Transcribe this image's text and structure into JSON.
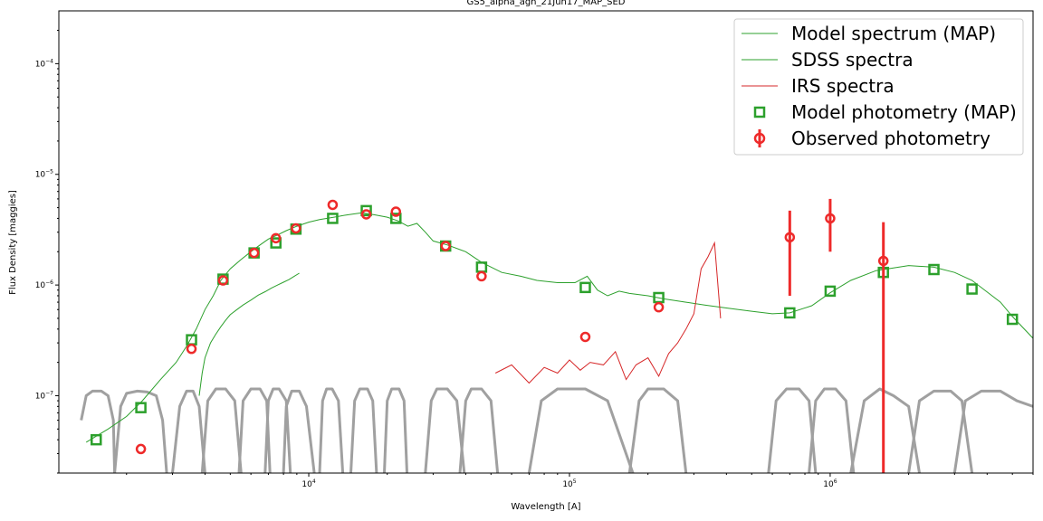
{
  "chart_data": {
    "type": "scatter",
    "title": "GS5_alpha_agn_21Jun17_MAP_SED",
    "xlabel": "Wavelength [A]",
    "ylabel": "Flux Density [maggies]",
    "xscale": "log",
    "yscale": "log",
    "xlim": [
      1100,
      6000000
    ],
    "ylim": [
      2e-08,
      0.0003
    ],
    "grid": false,
    "legend_placement": "top-right",
    "x_ticks": [
      {
        "base": "10",
        "exp": "4",
        "value": 10000
      },
      {
        "base": "10",
        "exp": "5",
        "value": 100000
      },
      {
        "base": "10",
        "exp": "6",
        "value": 1000000
      }
    ],
    "y_ticks": [
      {
        "base": "10",
        "exp": "−7",
        "value": 1e-07
      },
      {
        "base": "10",
        "exp": "−6",
        "value": 1e-06
      },
      {
        "base": "10",
        "exp": "−5",
        "value": 1e-05
      },
      {
        "base": "10",
        "exp": "−4",
        "value": 0.0001
      }
    ],
    "colors": {
      "model": "#2ca02c",
      "sdss": "#2ca02c",
      "irs": "#d62728",
      "model_phot": "#2ca02c",
      "obs_phot": "#ee2a2a",
      "filters": "#a0a0a0"
    },
    "series": [
      {
        "name": "Model spectrum (MAP)",
        "kind": "line",
        "x": [
          1400,
          1700,
          2000,
          2300,
          2700,
          3100,
          3400,
          3700,
          4000,
          4300,
          4600,
          5000,
          5500,
          6000,
          6500,
          7000,
          7500,
          8200,
          9000,
          10000,
          11000,
          12500,
          14000,
          16000,
          18000,
          20000,
          22000,
          24000,
          26000,
          28000,
          30000,
          34000,
          40000,
          46000,
          55000,
          65000,
          75000,
          90000,
          105000,
          117000,
          128000,
          140000,
          155000,
          170000,
          200000,
          230000,
          280000,
          330000,
          400000,
          500000,
          600000,
          700000,
          850000,
          1000000,
          1200000,
          1500000,
          2000000,
          2500000,
          3000000,
          3500000,
          4500000,
          5000000,
          6000000
        ],
        "y": [
          3.8e-08,
          5e-08,
          6.5e-08,
          9e-08,
          1.4e-07,
          2e-07,
          2.8e-07,
          4e-07,
          6e-07,
          8e-07,
          1.1e-06,
          1.4e-06,
          1.7e-06,
          2e-06,
          2.3e-06,
          2.6e-06,
          2.8e-06,
          3.1e-06,
          3.4e-06,
          3.7e-06,
          3.9e-06,
          4.1e-06,
          4.3e-06,
          4.5e-06,
          4.3e-06,
          4.1e-06,
          3.8e-06,
          3.4e-06,
          3.6e-06,
          3e-06,
          2.5e-06,
          2.3e-06,
          2e-06,
          1.6e-06,
          1.3e-06,
          1.2e-06,
          1.1e-06,
          1.05e-06,
          1.05e-06,
          1.2e-06,
          9e-07,
          8e-07,
          8.8e-07,
          8.4e-07,
          8e-07,
          7.5e-07,
          7e-07,
          6.6e-07,
          6.2e-07,
          5.8e-07,
          5.5e-07,
          5.6e-07,
          6.5e-07,
          8.5e-07,
          1.1e-06,
          1.35e-06,
          1.5e-06,
          1.45e-06,
          1.3e-06,
          1.1e-06,
          7e-07,
          5.2e-07,
          3.3e-07
        ]
      },
      {
        "name": "SDSS spectra",
        "kind": "line",
        "x": [
          3800,
          3900,
          4000,
          4200,
          4400,
          4600,
          4800,
          5000,
          5300,
          5600,
          6000,
          6400,
          6800,
          7200,
          7600,
          8000,
          8400,
          8800,
          9200
        ],
        "y": [
          1e-07,
          1.6e-07,
          2.2e-07,
          3e-07,
          3.6e-07,
          4.2e-07,
          4.8e-07,
          5.4e-07,
          6e-07,
          6.6e-07,
          7.3e-07,
          8.1e-07,
          8.7e-07,
          9.4e-07,
          1e-06,
          1.06e-06,
          1.12e-06,
          1.2e-06,
          1.28e-06
        ]
      },
      {
        "name": "IRS spectra",
        "kind": "line",
        "x": [
          52000,
          60000,
          70000,
          80000,
          90000,
          100000,
          110000,
          120000,
          135000,
          150000,
          165000,
          180000,
          200000,
          220000,
          240000,
          260000,
          280000,
          300000,
          320000,
          340000,
          360000,
          380000
        ],
        "y": [
          1.6e-07,
          1.9e-07,
          1.3e-07,
          1.8e-07,
          1.6e-07,
          2.1e-07,
          1.7e-07,
          2e-07,
          1.9e-07,
          2.5e-07,
          1.4e-07,
          1.9e-07,
          2.2e-07,
          1.5e-07,
          2.4e-07,
          3e-07,
          4e-07,
          5.5e-07,
          1.4e-06,
          1.8e-06,
          2.4e-06,
          5e-07
        ]
      },
      {
        "name": "Model photometry (MAP)",
        "kind": "square",
        "x": [
          1530,
          2270,
          3550,
          4690,
          6170,
          7480,
          8930,
          12350,
          16620,
          21590,
          33500,
          46000,
          115000,
          220000,
          700000,
          1000000,
          1600000,
          2500000,
          3500000,
          5000000
        ],
        "y": [
          4e-08,
          7.8e-08,
          3.2e-07,
          1.13e-06,
          1.95e-06,
          2.4e-06,
          3.2e-06,
          4e-06,
          4.7e-06,
          4e-06,
          2.25e-06,
          1.45e-06,
          9.5e-07,
          7.7e-07,
          5.6e-07,
          8.8e-07,
          1.3e-06,
          1.38e-06,
          9.2e-07,
          4.9e-07
        ]
      },
      {
        "name": "Observed photometry",
        "kind": "circle",
        "x": [
          2270,
          3550,
          4690,
          6170,
          7480,
          8930,
          12350,
          16620,
          21590,
          33500,
          46000,
          115000,
          220000,
          700000,
          1000000,
          1600000
        ],
        "y": [
          3.3e-08,
          2.65e-07,
          1.1e-06,
          1.95e-06,
          2.65e-06,
          3.25e-06,
          5.3e-06,
          4.35e-06,
          4.6e-06,
          2.25e-06,
          1.2e-06,
          3.4e-07,
          6.3e-07,
          2.7e-06,
          4e-06,
          1.65e-06
        ],
        "yerr_low": [
          0,
          0,
          0,
          0,
          0,
          0,
          0,
          0,
          0,
          0,
          0,
          0,
          0,
          8e-07,
          2e-06,
          2e-08
        ],
        "yerr_high": [
          0,
          0,
          0,
          0,
          0,
          0,
          0,
          0,
          0,
          0,
          0,
          0,
          0,
          4.7e-06,
          6e-06,
          3.7e-06
        ]
      }
    ],
    "filter_curves": [
      {
        "x": [
          1340,
          1400,
          1480,
          1600,
          1700,
          1780,
          1800
        ],
        "y": [
          6e-08,
          1e-07,
          1.1e-07,
          1.1e-07,
          1e-07,
          6e-08,
          2e-08
        ]
      },
      {
        "x": [
          1800,
          1900,
          2000,
          2200,
          2400,
          2600,
          2750,
          2850
        ],
        "y": [
          2e-08,
          8e-08,
          1.05e-07,
          1.1e-07,
          1.08e-07,
          1e-07,
          6e-08,
          2e-08
        ]
      },
      {
        "x": [
          3000,
          3200,
          3400,
          3600,
          3800,
          4000
        ],
        "y": [
          2e-08,
          8e-08,
          1.1e-07,
          1.1e-07,
          8e-08,
          2e-08
        ]
      },
      {
        "x": [
          3900,
          4100,
          4400,
          4800,
          5200,
          5500
        ],
        "y": [
          2e-08,
          9e-08,
          1.15e-07,
          1.15e-07,
          9e-08,
          2e-08
        ]
      },
      {
        "x": [
          5400,
          5600,
          6000,
          6500,
          6900,
          7100
        ],
        "y": [
          2e-08,
          9e-08,
          1.15e-07,
          1.15e-07,
          9e-08,
          2e-08
        ]
      },
      {
        "x": [
          6800,
          7000,
          7300,
          7700,
          8200,
          8500
        ],
        "y": [
          2e-08,
          9e-08,
          1.15e-07,
          1.15e-07,
          9e-08,
          2e-08
        ]
      },
      {
        "x": [
          8000,
          8200,
          8600,
          9200,
          9800,
          10500
        ],
        "y": [
          2e-08,
          8e-08,
          1.1e-07,
          1.1e-07,
          8e-08,
          2e-08
        ]
      },
      {
        "x": [
          11000,
          11300,
          11700,
          12300,
          13000,
          13500
        ],
        "y": [
          2e-08,
          9e-08,
          1.15e-07,
          1.15e-07,
          9e-08,
          2e-08
        ]
      },
      {
        "x": [
          14500,
          15000,
          15700,
          16800,
          17600,
          18200
        ],
        "y": [
          2e-08,
          9e-08,
          1.15e-07,
          1.15e-07,
          9e-08,
          2e-08
        ]
      },
      {
        "x": [
          19500,
          20000,
          20800,
          22200,
          23200,
          23800
        ],
        "y": [
          2e-08,
          9e-08,
          1.15e-07,
          1.15e-07,
          9e-08,
          2e-08
        ]
      },
      {
        "x": [
          28000,
          29500,
          31000,
          34000,
          37000,
          39500
        ],
        "y": [
          2e-08,
          9e-08,
          1.15e-07,
          1.15e-07,
          9e-08,
          2e-08
        ]
      },
      {
        "x": [
          38000,
          40000,
          42000,
          46000,
          50000,
          53000
        ],
        "y": [
          2e-08,
          9e-08,
          1.15e-07,
          1.15e-07,
          9e-08,
          2e-08
        ]
      },
      {
        "x": [
          70000,
          78000,
          90000,
          115000,
          140000,
          175000
        ],
        "y": [
          2e-08,
          9e-08,
          1.15e-07,
          1.15e-07,
          9e-08,
          2e-08
        ]
      },
      {
        "x": [
          170000,
          185000,
          200000,
          230000,
          260000,
          280000
        ],
        "y": [
          2e-08,
          9e-08,
          1.15e-07,
          1.15e-07,
          9e-08,
          2e-08
        ]
      },
      {
        "x": [
          580000,
          620000,
          680000,
          760000,
          830000,
          880000
        ],
        "y": [
          2e-08,
          9e-08,
          1.15e-07,
          1.15e-07,
          9e-08,
          2e-08
        ]
      },
      {
        "x": [
          830000,
          880000,
          950000,
          1050000,
          1150000,
          1230000
        ],
        "y": [
          2e-08,
          9e-08,
          1.15e-07,
          1.15e-07,
          9e-08,
          2e-08
        ]
      },
      {
        "x": [
          1200000,
          1350000,
          1550000,
          1750000,
          2000000,
          2200000
        ],
        "y": [
          2e-08,
          9e-08,
          1.15e-07,
          1e-07,
          8e-08,
          2e-08
        ]
      },
      {
        "x": [
          2000000,
          2200000,
          2500000,
          2900000,
          3200000,
          3500000
        ],
        "y": [
          2e-08,
          9e-08,
          1.1e-07,
          1.1e-07,
          9e-08,
          2e-08
        ]
      },
      {
        "x": [
          3000000,
          3300000,
          3800000,
          4500000,
          5200000,
          6000000
        ],
        "y": [
          2e-08,
          9e-08,
          1.1e-07,
          1.1e-07,
          9e-08,
          8e-08
        ]
      }
    ]
  }
}
